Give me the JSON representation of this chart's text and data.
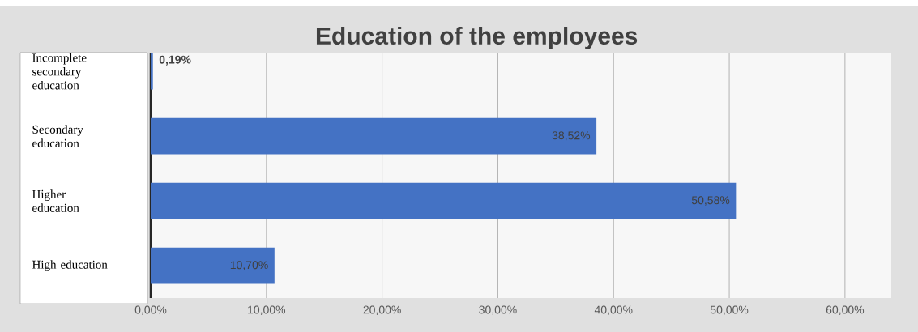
{
  "chart_data": {
    "type": "bar",
    "orientation": "horizontal",
    "title": "Education of the employees",
    "categories": [
      "Incomplete secondary education",
      "Secondary education",
      "Higher education",
      "High education"
    ],
    "values": [
      0.19,
      38.52,
      50.58,
      10.7
    ],
    "value_labels": [
      "0,19%",
      "38,52%",
      "50,58%",
      "10,70%"
    ],
    "color": "#4472c4",
    "xlim": [
      0,
      64
    ],
    "xticks": [
      {
        "value": 0,
        "label": "0,00%"
      },
      {
        "value": 10,
        "label": "10,00%"
      },
      {
        "value": 20,
        "label": "20,00%"
      },
      {
        "value": 30,
        "label": "30,00%"
      },
      {
        "value": 40,
        "label": "40,00%"
      },
      {
        "value": 50,
        "label": "50,00%"
      },
      {
        "value": 60,
        "label": "60,00%"
      }
    ],
    "grid": "x"
  }
}
